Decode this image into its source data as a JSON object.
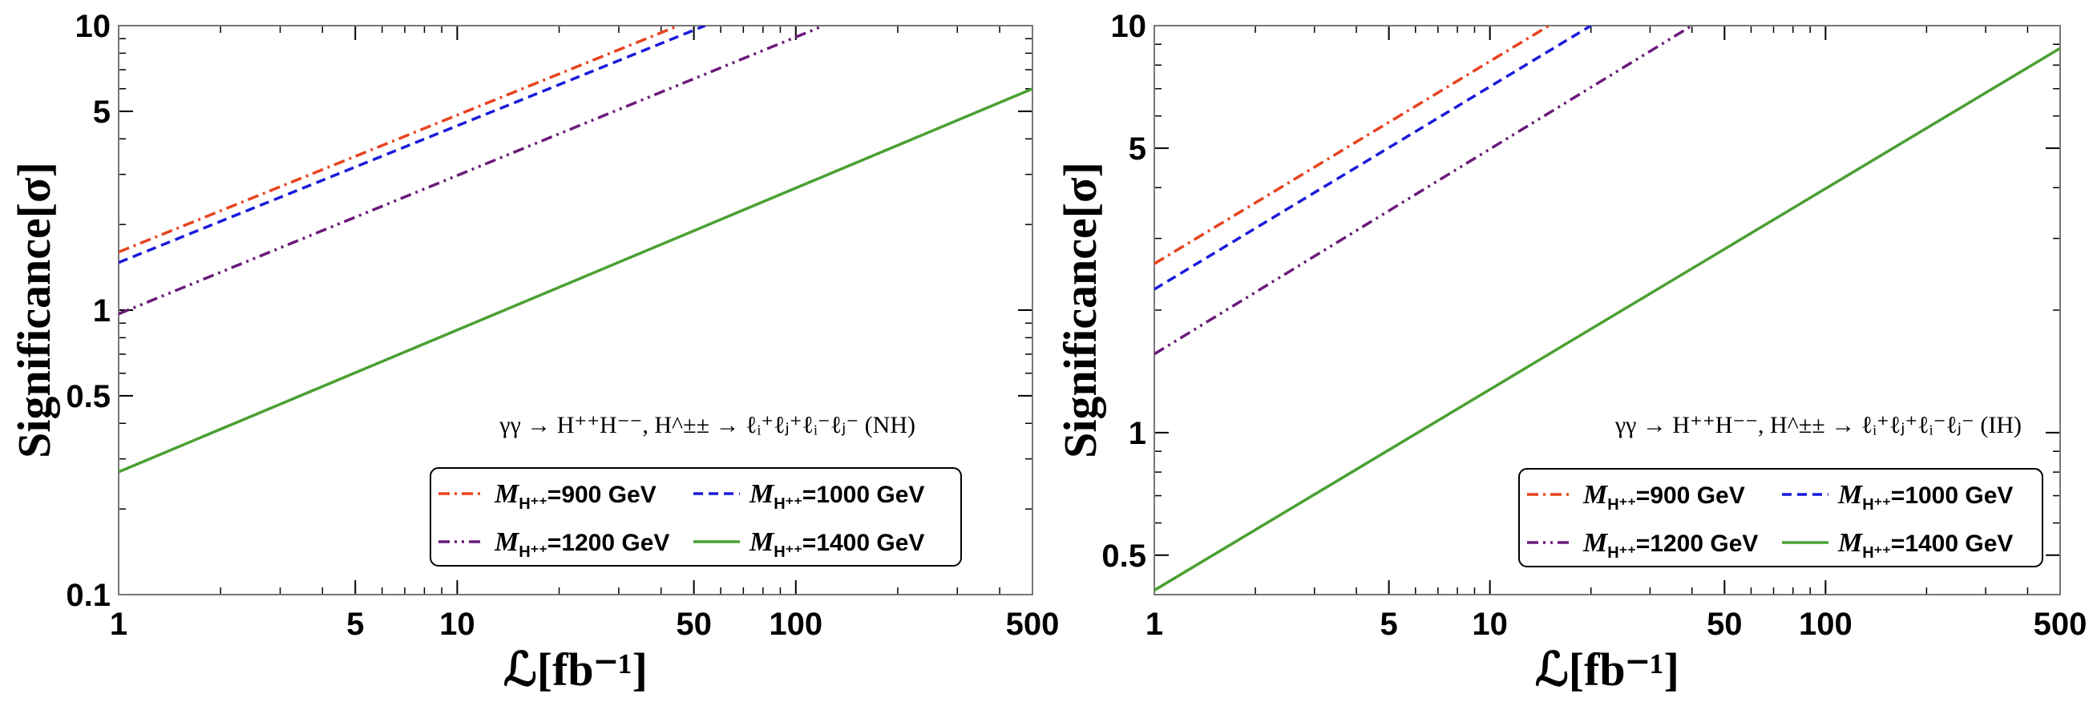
{
  "chart_data": [
    {
      "type": "line",
      "scale": "log-log",
      "xlabel": "ℒ[fb⁻¹]",
      "ylabel": "Significance[σ]",
      "xlim": [
        1,
        500
      ],
      "ylim": [
        0.1,
        10
      ],
      "xticks": [
        1,
        5,
        10,
        50,
        100,
        500
      ],
      "xtick_labels": [
        "1",
        "5",
        "10",
        "50",
        "100",
        "500"
      ],
      "yticks": [
        0.1,
        0.5,
        1,
        5,
        10
      ],
      "ytick_labels": [
        "0.1",
        "0.5",
        "1",
        "5",
        "10"
      ],
      "annotation": "γγ → H⁺⁺H⁻⁻, H^±± → ℓᵢ⁺ℓⱼ⁺ℓᵢ⁻ℓⱼ⁻ (NH)",
      "legend_position": "lower-right",
      "series": [
        {
          "name": "900 GeV",
          "label_prefix": "M",
          "label_sub": "H⁺⁺",
          "label_suffix": "=900 GeV",
          "style": "dashdot",
          "color": "#e8431f",
          "points": [
            [
              1,
              1.6
            ],
            [
              45,
              10
            ]
          ]
        },
        {
          "name": "1000 GeV",
          "label_prefix": "M",
          "label_sub": "H⁺⁺",
          "label_suffix": "=1000 GeV",
          "style": "dashed",
          "color": "#1a1adc",
          "points": [
            [
              1,
              1.47
            ],
            [
              54,
              10
            ]
          ]
        },
        {
          "name": "1200 GeV",
          "label_prefix": "M",
          "label_sub": "H⁺⁺",
          "label_suffix": "=1200 GeV",
          "style": "dashdotdot",
          "color": "#6b1a7a",
          "points": [
            [
              1,
              0.97
            ],
            [
              121,
              10
            ]
          ]
        },
        {
          "name": "1400 GeV",
          "label_prefix": "M",
          "label_sub": "H⁺⁺",
          "label_suffix": "=1400 GeV",
          "style": "solid",
          "color": "#4aa032",
          "points": [
            [
              1,
              0.27
            ],
            [
              500,
              6.0
            ]
          ]
        }
      ]
    },
    {
      "type": "line",
      "scale": "log-log",
      "xlabel": "ℒ[fb⁻¹]",
      "ylabel": "Significance[σ]",
      "xlim": [
        1,
        500
      ],
      "ylim": [
        0.4,
        10
      ],
      "xticks": [
        1,
        5,
        10,
        50,
        100,
        500
      ],
      "xtick_labels": [
        "1",
        "5",
        "10",
        "50",
        "100",
        "500"
      ],
      "yticks": [
        0.5,
        1,
        5,
        10
      ],
      "ytick_labels": [
        "0.5",
        "1",
        "5",
        "10"
      ],
      "annotation": "γγ → H⁺⁺H⁻⁻, H^±± → ℓᵢ⁺ℓⱼ⁺ℓᵢ⁻ℓⱼ⁻ (IH)",
      "legend_position": "lower-right",
      "series": [
        {
          "name": "900 GeV",
          "label_prefix": "M",
          "label_sub": "H⁺⁺",
          "label_suffix": "=900 GeV",
          "style": "dashdot",
          "color": "#e8431f",
          "points": [
            [
              1,
              2.6
            ],
            [
              15,
              10
            ]
          ]
        },
        {
          "name": "1000 GeV",
          "label_prefix": "M",
          "label_sub": "H⁺⁺",
          "label_suffix": "=1000 GeV",
          "style": "dashed",
          "color": "#1a1adc",
          "points": [
            [
              1,
              2.25
            ],
            [
              20,
              10
            ]
          ]
        },
        {
          "name": "1200 GeV",
          "label_prefix": "M",
          "label_sub": "H⁺⁺",
          "label_suffix": "=1200 GeV",
          "style": "dashdotdot",
          "color": "#6b1a7a",
          "points": [
            [
              1,
              1.56
            ],
            [
              40,
              10
            ]
          ]
        },
        {
          "name": "1400 GeV",
          "label_prefix": "M",
          "label_sub": "H⁺⁺",
          "label_suffix": "=1400 GeV",
          "style": "solid",
          "color": "#4aa032",
          "points": [
            [
              1,
              0.41
            ],
            [
              500,
              8.8
            ]
          ]
        }
      ]
    }
  ]
}
